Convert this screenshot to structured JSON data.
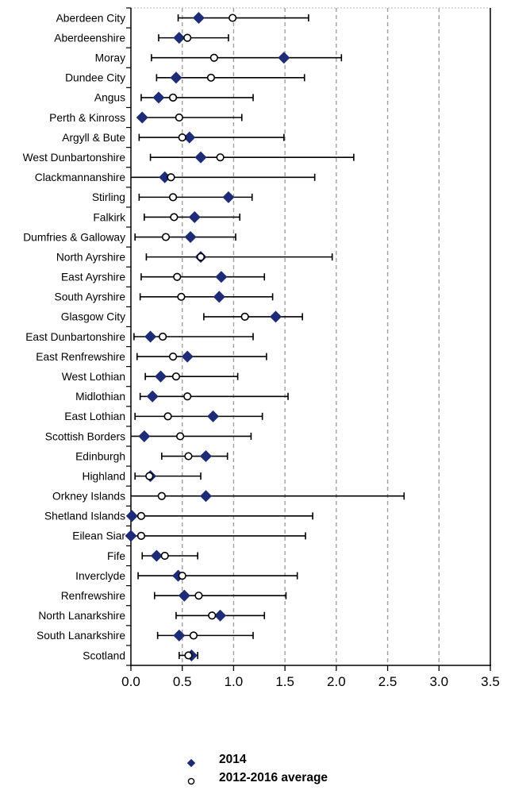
{
  "chart_data": {
    "type": "scatter",
    "subtype": "horizontal dot plot with min-max range whiskers",
    "title": "",
    "xlabel": "",
    "ylabel": "",
    "xlim": [
      0,
      3.5
    ],
    "xtick_labels": [
      "0.0",
      "0.5",
      "1.0",
      "1.5",
      "2.0",
      "2.5",
      "3.0",
      "3.5"
    ],
    "grid": "vertical dashed gridlines at each 0.5 step",
    "legend_position": "bottom",
    "categories": [
      "Aberdeen City",
      "Aberdeenshire",
      "Moray",
      "Dundee City",
      "Angus",
      "Perth & Kinross",
      "Argyll & Bute",
      "West Dunbartonshire",
      "Clackmannanshire",
      "Stirling",
      "Falkirk",
      "Dumfries & Galloway",
      "North Ayrshire",
      "East Ayrshire",
      "South Ayrshire",
      "Glasgow City",
      "East Dunbartonshire",
      "East Renfrewshire",
      "West Lothian",
      "Midlothian",
      "East Lothian",
      "Scottish Borders",
      "Edinburgh",
      "Highland",
      "Orkney Islands",
      "Shetland Islands",
      "Eilean Siar",
      "Fife",
      "Inverclyde",
      "Renfrewshire",
      "North Lanarkshire",
      "South Lanarkshire",
      "Scotland"
    ],
    "series": [
      {
        "name": "2014",
        "marker": "filled-diamond",
        "color": "#1E2C78",
        "values": [
          0.66,
          0.47,
          1.49,
          0.44,
          0.27,
          0.11,
          0.57,
          0.68,
          0.33,
          0.95,
          0.62,
          0.58,
          0.68,
          0.88,
          0.86,
          1.41,
          0.19,
          0.55,
          0.29,
          0.21,
          0.8,
          0.13,
          0.73,
          0.19,
          0.73,
          0.01,
          0.0,
          0.25,
          0.46,
          0.52,
          0.87,
          0.47,
          0.59
        ]
      },
      {
        "name": "2012-2016 average",
        "marker": "open-circle",
        "color": "#000000",
        "values": [
          0.99,
          0.55,
          0.81,
          0.78,
          0.41,
          0.47,
          0.5,
          0.87,
          0.39,
          0.41,
          0.42,
          0.34,
          0.68,
          0.45,
          0.49,
          1.11,
          0.31,
          0.41,
          0.44,
          0.55,
          0.36,
          0.48,
          0.56,
          0.18,
          0.3,
          0.1,
          0.1,
          0.33,
          0.5,
          0.66,
          0.79,
          0.61,
          0.56
        ]
      }
    ],
    "range_bars": {
      "description": "black whiskers showing spread per area",
      "low": [
        0.46,
        0.27,
        0.2,
        0.25,
        0.1,
        0.1,
        0.08,
        0.19,
        0.0,
        0.08,
        0.13,
        0.04,
        0.15,
        0.1,
        0.09,
        0.71,
        0.03,
        0.06,
        0.14,
        0.09,
        0.04,
        0.0,
        0.3,
        0.04,
        0.0,
        0.0,
        0.0,
        0.11,
        0.07,
        0.23,
        0.44,
        0.26,
        0.47
      ],
      "high": [
        1.73,
        0.95,
        2.05,
        1.69,
        1.19,
        1.08,
        1.49,
        2.17,
        1.79,
        1.18,
        1.06,
        1.02,
        1.96,
        1.3,
        1.38,
        1.67,
        1.19,
        1.32,
        1.04,
        1.53,
        1.28,
        1.17,
        0.94,
        0.68,
        2.66,
        1.77,
        1.7,
        0.65,
        1.62,
        1.51,
        1.3,
        1.19,
        0.65
      ]
    }
  },
  "legend": {
    "items": [
      {
        "label": "2014",
        "marker": "filled-diamond"
      },
      {
        "label": "2012-2016 average",
        "marker": "open-circle"
      }
    ]
  },
  "colors": {
    "marker_navy": "#1E2C78",
    "whisker_black": "#000000",
    "grid_gray": "#A0A0A0",
    "frame_top_gray": "#B5B5B5",
    "axis_black": "#000000",
    "text_black": "#000000",
    "background": "#FFFFFF"
  }
}
